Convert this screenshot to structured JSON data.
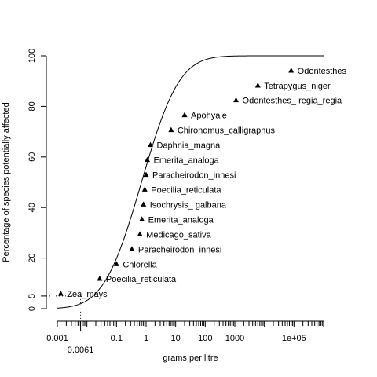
{
  "chart_data": {
    "type": "scatter",
    "title": "",
    "xlabel": "grams per litre",
    "ylabel": "Percentage of species potentially affected",
    "x_scale": "log10",
    "xlim": [
      0.001,
      1000000
    ],
    "ylim": [
      0,
      100
    ],
    "x_ticks": [
      {
        "value": 0.001,
        "label": "0.001"
      },
      {
        "value": 0.1,
        "label": "0.1"
      },
      {
        "value": 1,
        "label": "1"
      },
      {
        "value": 10,
        "label": "10"
      },
      {
        "value": 100,
        "label": "100"
      },
      {
        "value": 1000,
        "label": "1000"
      },
      {
        "value": 100000,
        "label": "1e+05"
      }
    ],
    "x_ticks_secondary": [
      {
        "value": 0.0061,
        "label": "0.0061"
      }
    ],
    "y_ticks": [
      {
        "value": 0,
        "label": "0"
      },
      {
        "value": 5,
        "label": "5"
      },
      {
        "value": 20,
        "label": "20"
      },
      {
        "value": 40,
        "label": "40"
      },
      {
        "value": 60,
        "label": "60"
      },
      {
        "value": 80,
        "label": "80"
      },
      {
        "value": 100,
        "label": "100"
      }
    ],
    "reference": {
      "x": 0.0061,
      "y": 5
    },
    "fitted_curve": {
      "type": "log-normal CDF",
      "median": 0.7,
      "log10_sd": 1.0
    },
    "points": [
      {
        "label": "Zea_mays",
        "x": 0.0013,
        "y": 5.9
      },
      {
        "label": "Poecilia_reticulata",
        "x": 0.027,
        "y": 11.8
      },
      {
        "label": "Chlorella",
        "x": 0.1,
        "y": 17.6
      },
      {
        "label": "Paracheirodon_innesi",
        "x": 0.33,
        "y": 23.5
      },
      {
        "label": "Medicago_sativa",
        "x": 0.62,
        "y": 29.4
      },
      {
        "label": "Emerita_analoga",
        "x": 0.72,
        "y": 35.3
      },
      {
        "label": "Isochrysis_ galbana",
        "x": 0.82,
        "y": 41.2
      },
      {
        "label": "Poecilia_reticulata",
        "x": 0.9,
        "y": 47.1
      },
      {
        "label": "Paracheirodon_innesi",
        "x": 1.0,
        "y": 52.9
      },
      {
        "label": "Emerita_analoga",
        "x": 1.1,
        "y": 58.8
      },
      {
        "label": "Daphnia_magna",
        "x": 1.4,
        "y": 64.7
      },
      {
        "label": "Chironomus_calligraphus",
        "x": 7.0,
        "y": 70.6
      },
      {
        "label": "Apohyale",
        "x": 20,
        "y": 76.5
      },
      {
        "label": "Odontesthes_ regia_regia",
        "x": 1100,
        "y": 82.4
      },
      {
        "label": "Tetrapygus_niger",
        "x": 6000,
        "y": 88.2
      },
      {
        "label": "Odontesthes",
        "x": 80000,
        "y": 94.1
      }
    ]
  }
}
